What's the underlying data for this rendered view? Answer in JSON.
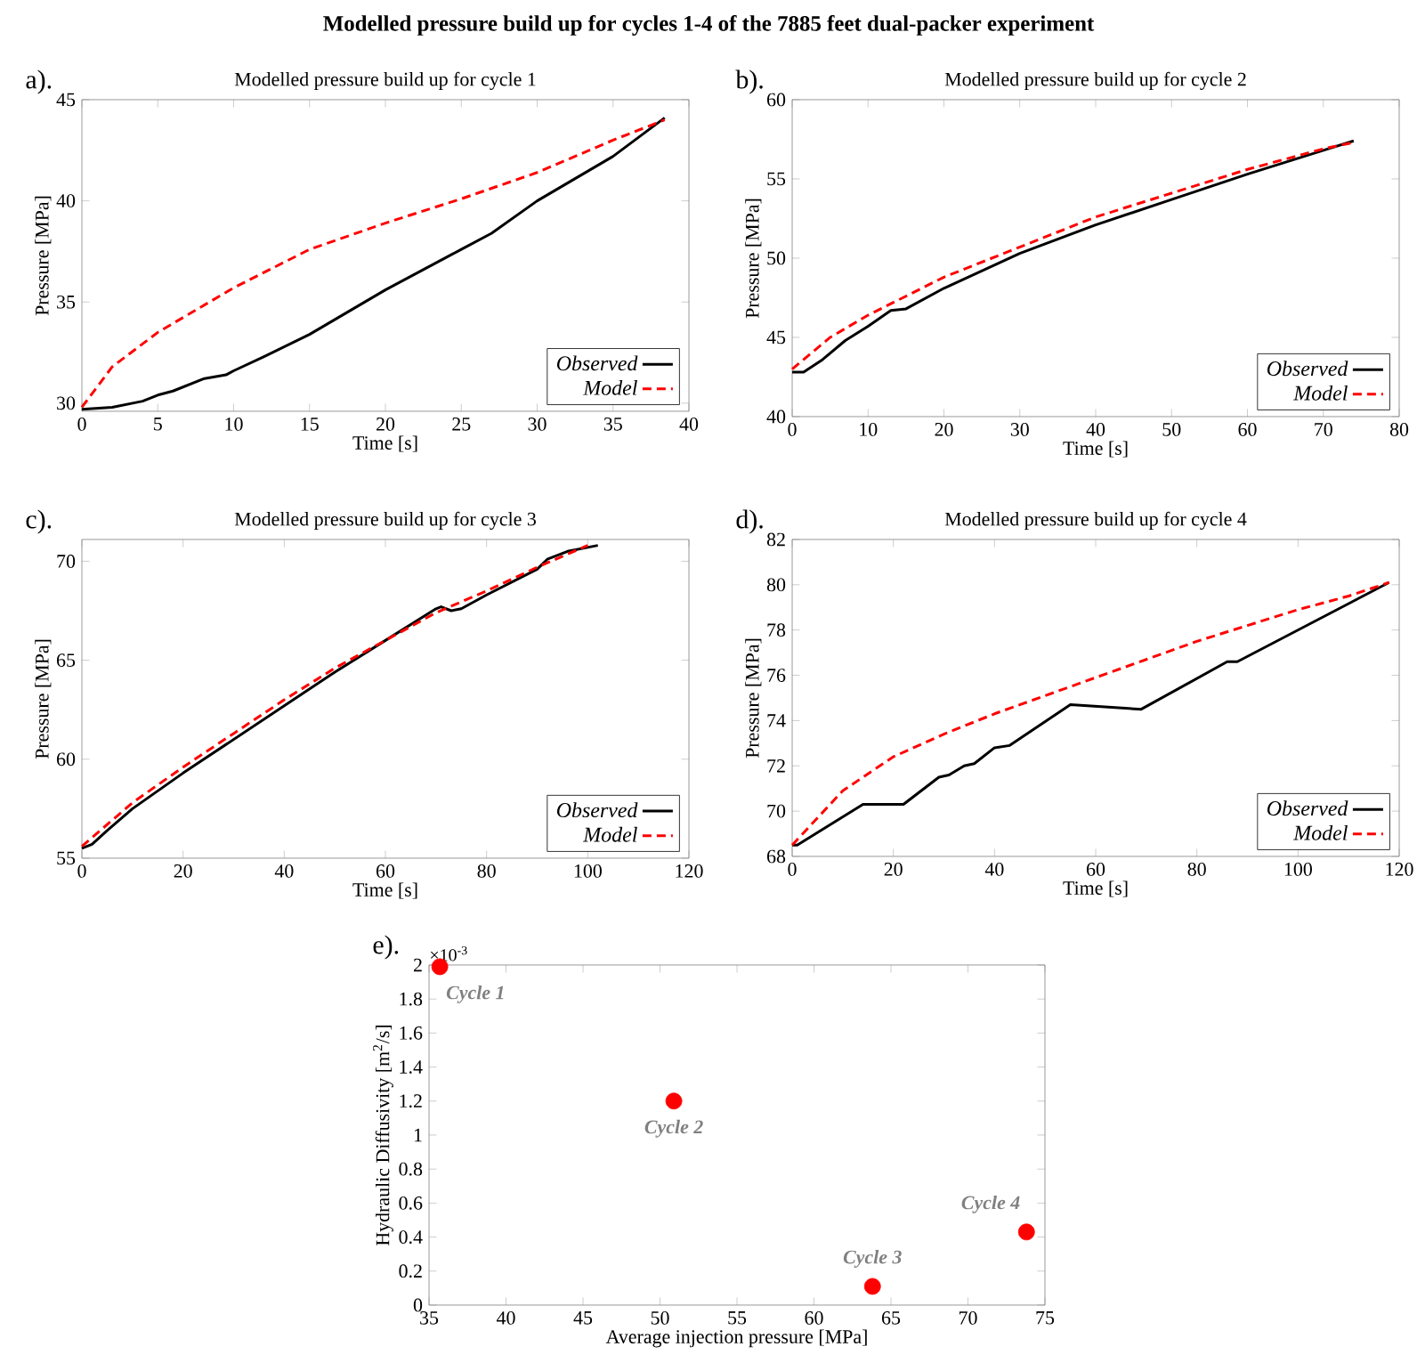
{
  "chart_data": [
    {
      "type": "other",
      "title": "Modelled pressure build up for cycles 1-4 of the 7885 feet dual-packer experiment"
    },
    {
      "type": "line",
      "title": "Modelled pressure build up for cycle 1",
      "xlabel": "Time [s]",
      "ylabel": "Pressure [MPa]",
      "annotations": [
        "a)."
      ],
      "xlim": [
        0,
        40
      ],
      "ylim": [
        29.6,
        45
      ],
      "xticks": [
        0,
        5,
        10,
        15,
        20,
        25,
        30,
        35,
        40
      ],
      "yticks": [
        30,
        35,
        40,
        45
      ],
      "legend": "bottom right",
      "series": [
        {
          "name": "Observed",
          "color": "#000000",
          "line_style": "solid",
          "x": [
            0,
            2,
            4,
            5,
            6,
            8,
            9.5,
            10,
            12,
            15,
            20,
            25,
            27,
            30,
            35,
            38.4
          ],
          "values": [
            29.7,
            29.8,
            30.1,
            30.4,
            30.6,
            31.2,
            31.4,
            31.6,
            32.3,
            33.4,
            35.6,
            37.6,
            38.4,
            40.0,
            42.2,
            44.1
          ]
        },
        {
          "name": "Model",
          "color": "#ff0000",
          "line_style": "dashed",
          "x": [
            0,
            2,
            5,
            10,
            15,
            20,
            25,
            30,
            35,
            38.4
          ],
          "values": [
            29.8,
            31.8,
            33.5,
            35.7,
            37.6,
            38.9,
            40.1,
            41.4,
            43.0,
            44.0
          ]
        }
      ]
    },
    {
      "type": "line",
      "title": "Modelled pressure build up for cycle 2",
      "xlabel": "Time [s]",
      "ylabel": "Pressure [MPa]",
      "annotations": [
        "b)."
      ],
      "xlim": [
        0,
        80
      ],
      "ylim": [
        40,
        60
      ],
      "xticks": [
        0,
        10,
        20,
        30,
        40,
        50,
        60,
        70,
        80
      ],
      "yticks": [
        40,
        45,
        50,
        55,
        60
      ],
      "legend": "bottom right",
      "series": [
        {
          "name": "Observed",
          "color": "#000000",
          "line_style": "solid",
          "x": [
            0,
            1.5,
            4,
            7,
            10,
            13,
            15,
            20,
            30,
            40,
            50,
            60,
            70,
            74
          ],
          "values": [
            42.8,
            42.8,
            43.6,
            44.8,
            45.7,
            46.7,
            46.8,
            48.1,
            50.3,
            52.1,
            53.7,
            55.3,
            56.8,
            57.4
          ]
        },
        {
          "name": "Model",
          "color": "#ff0000",
          "line_style": "dashed",
          "x": [
            0,
            5,
            10,
            20,
            30,
            40,
            50,
            60,
            70,
            74
          ],
          "values": [
            43.0,
            45.0,
            46.4,
            48.8,
            50.7,
            52.6,
            54.1,
            55.6,
            56.9,
            57.3
          ]
        }
      ]
    },
    {
      "type": "line",
      "title": "Modelled pressure build up for cycle 3",
      "xlabel": "Time [s]",
      "ylabel": "Pressure [MPa]",
      "annotations": [
        "c)."
      ],
      "xlim": [
        0,
        120
      ],
      "ylim": [
        55,
        71.1
      ],
      "xticks": [
        0,
        20,
        40,
        60,
        80,
        100,
        120
      ],
      "yticks": [
        55,
        60,
        65,
        70
      ],
      "legend": "bottom right",
      "series": [
        {
          "name": "Observed",
          "color": "#000000",
          "line_style": "solid",
          "x": [
            0,
            2,
            5,
            10,
            20,
            30,
            40,
            50,
            60,
            70,
            71,
            73,
            75,
            80,
            90,
            92,
            96,
            102
          ],
          "values": [
            55.5,
            55.7,
            56.4,
            57.5,
            59.3,
            61.0,
            62.7,
            64.4,
            66.0,
            67.6,
            67.7,
            67.5,
            67.6,
            68.3,
            69.6,
            70.1,
            70.5,
            70.8
          ]
        },
        {
          "name": "Model",
          "color": "#ff0000",
          "line_style": "dashed",
          "x": [
            0,
            10,
            20,
            30,
            40,
            50,
            60,
            70,
            80,
            90,
            100
          ],
          "values": [
            55.6,
            57.8,
            59.6,
            61.3,
            63.0,
            64.6,
            66.0,
            67.4,
            68.5,
            69.7,
            70.8
          ]
        }
      ]
    },
    {
      "type": "line",
      "title": "Modelled pressure build up for cycle 4",
      "xlabel": "Time [s]",
      "ylabel": "Pressure [MPa]",
      "annotations": [
        "d)."
      ],
      "xlim": [
        0,
        120
      ],
      "ylim": [
        68,
        82
      ],
      "xticks": [
        0,
        20,
        40,
        60,
        80,
        100,
        120
      ],
      "yticks": [
        68,
        70,
        72,
        74,
        76,
        78,
        80,
        82
      ],
      "legend": "bottom right",
      "series": [
        {
          "name": "Observed",
          "color": "#000000",
          "line_style": "solid",
          "x": [
            0,
            1,
            14,
            22,
            29,
            31,
            34,
            36,
            40,
            43,
            55,
            69,
            86,
            88,
            118
          ],
          "values": [
            68.5,
            68.5,
            70.3,
            70.3,
            71.5,
            71.6,
            72.0,
            72.1,
            72.8,
            72.9,
            74.7,
            74.5,
            76.6,
            76.6,
            80.1
          ]
        },
        {
          "name": "Model",
          "color": "#ff0000",
          "line_style": "dashed",
          "x": [
            0,
            10,
            20,
            30,
            40,
            50,
            60,
            70,
            80,
            90,
            100,
            110,
            118
          ],
          "values": [
            68.5,
            70.9,
            72.4,
            73.4,
            74.3,
            75.1,
            75.9,
            76.7,
            77.5,
            78.2,
            78.9,
            79.5,
            80.1
          ]
        }
      ]
    },
    {
      "type": "scatter",
      "xlabel": "Average injection pressure [MPa]",
      "ylabel": "Hydraulic Diffusivity  [m$^{2}$/s]",
      "xlim": [
        35,
        75
      ],
      "ylim": [
        0,
        2
      ],
      "xticks": [
        35,
        40,
        45,
        50,
        55,
        60,
        65,
        70,
        75
      ],
      "yticks": [
        0,
        0.2,
        0.4,
        0.6,
        0.8,
        1,
        1.2,
        1.4,
        1.6,
        1.8,
        2
      ],
      "marker": "circle",
      "color": "#ff0000",
      "x": [
        35.7,
        50.9,
        63.8,
        73.8
      ],
      "values": [
        1.99,
        1.2,
        0.11,
        0.43
      ],
      "annotations": [
        "e).",
        "×10$^{-3}$",
        {
          "text": "Cycle 1",
          "x": 35.7,
          "y": 1.99
        },
        {
          "text": "Cycle 2",
          "x": 50.9,
          "y": 1.2
        },
        {
          "text": "Cycle 3",
          "x": 63.8,
          "y": 0.11
        },
        {
          "text": "Cycle 4",
          "x": 73.8,
          "y": 0.43
        }
      ]
    }
  ]
}
